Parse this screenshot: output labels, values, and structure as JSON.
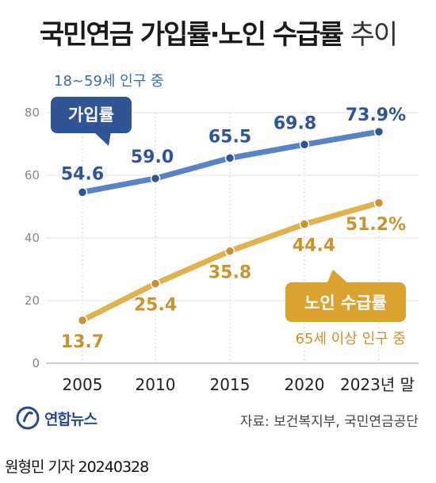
{
  "header": {
    "title_bold": "국민연금 가입률·노인 수급률",
    "title_light": "추이"
  },
  "chart_data": {
    "type": "line",
    "categories": [
      "2005",
      "2010",
      "2015",
      "2020",
      "2023년 말"
    ],
    "ylim": [
      0,
      80
    ],
    "yticks": [
      0,
      20,
      40,
      60,
      80
    ],
    "grid": true,
    "series": [
      {
        "name": "가입률",
        "note": "18~59세 인구 중",
        "color": "#5a82c7",
        "values": [
          54.6,
          59.0,
          65.5,
          69.8,
          73.9
        ],
        "labels": [
          "54.6",
          "59.0",
          "65.5",
          "69.8",
          "73.9%"
        ]
      },
      {
        "name": "노인 수급률",
        "note": "65세 이상 인구 중",
        "color": "#e0b24c",
        "values": [
          13.7,
          25.4,
          35.8,
          44.4,
          51.2
        ],
        "labels": [
          "13.7",
          "25.4",
          "35.8",
          "44.4",
          "51.2%"
        ]
      }
    ]
  },
  "footer": {
    "logo": "연합뉴스",
    "source": "자료: 보건복지부, 국민연금공단",
    "reporter": "원형민 기자",
    "date": "20240328"
  },
  "colors": {
    "blue_dark": "#2f5597",
    "gold": "#c9932e",
    "gold_box": "#dca22e"
  }
}
